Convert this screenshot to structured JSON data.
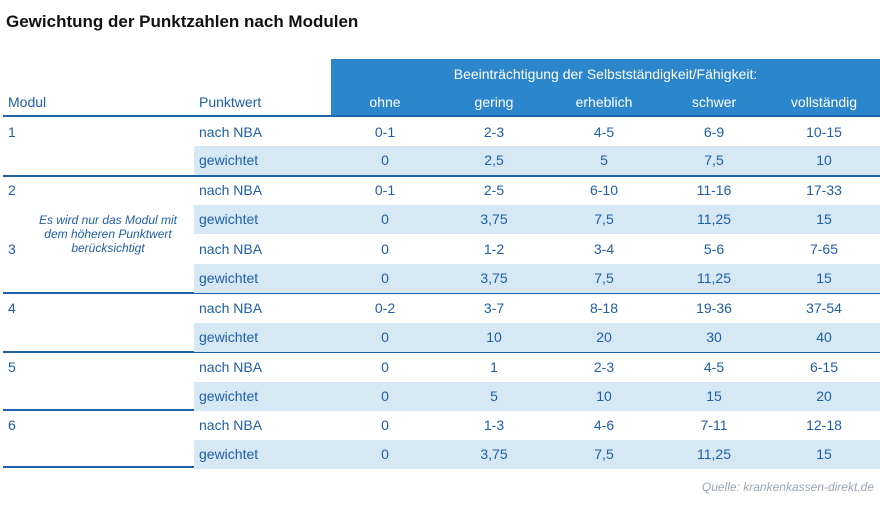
{
  "title": "Gewichtung der Punktzahlen nach Modulen",
  "header": {
    "group": "Beeinträchtigung der Selbstständigkeit/Fähigkeit:",
    "modul": "Modul",
    "punktwert": "Punktwert",
    "levels": [
      "ohne",
      "gering",
      "erheblich",
      "schwer",
      "vollständig"
    ]
  },
  "note": "Es wird nur das Modul mit dem höheren Punktwert berücksichtigt",
  "rows": [
    {
      "modul": "1",
      "typ": "nach NBA",
      "values": [
        "0-1",
        "2-3",
        "4-5",
        "6-9",
        "10-15"
      ]
    },
    {
      "modul": "",
      "typ": "gewichtet",
      "values": [
        "0",
        "2,5",
        "5",
        "7,5",
        "10"
      ]
    },
    {
      "modul": "2",
      "typ": "nach NBA",
      "values": [
        "0-1",
        "2-5",
        "6-10",
        "11-16",
        "17-33"
      ]
    },
    {
      "modul": "",
      "typ": "gewichtet",
      "values": [
        "0",
        "3,75",
        "7,5",
        "11,25",
        "15"
      ]
    },
    {
      "modul": "3",
      "typ": "nach NBA",
      "values": [
        "0",
        "1-2",
        "3-4",
        "5-6",
        "7-65"
      ]
    },
    {
      "modul": "",
      "typ": "gewichtet",
      "values": [
        "0",
        "3,75",
        "7,5",
        "11,25",
        "15"
      ]
    },
    {
      "modul": "4",
      "typ": "nach NBA",
      "values": [
        "0-2",
        "3-7",
        "8-18",
        "19-36",
        "37-54"
      ]
    },
    {
      "modul": "",
      "typ": "gewichtet",
      "values": [
        "0",
        "10",
        "20",
        "30",
        "40"
      ]
    },
    {
      "modul": "5",
      "typ": "nach NBA",
      "values": [
        "0",
        "1",
        "2-3",
        "4-5",
        "6-15"
      ]
    },
    {
      "modul": "",
      "typ": "gewichtet",
      "values": [
        "0",
        "5",
        "10",
        "15",
        "20"
      ]
    },
    {
      "modul": "6",
      "typ": "nach NBA",
      "values": [
        "0",
        "1-3",
        "4-6",
        "7-11",
        "12-18"
      ]
    },
    {
      "modul": "",
      "typ": "gewichtet",
      "values": [
        "0",
        "3,75",
        "7,5",
        "11,25",
        "15"
      ]
    }
  ],
  "source": "Quelle: krankenkassen-direkt.de",
  "colors": {
    "header_band": "#2b86cb",
    "row_band": "#d7e8f5",
    "text": "#1e5fa8",
    "rule": "#1f63ac"
  }
}
